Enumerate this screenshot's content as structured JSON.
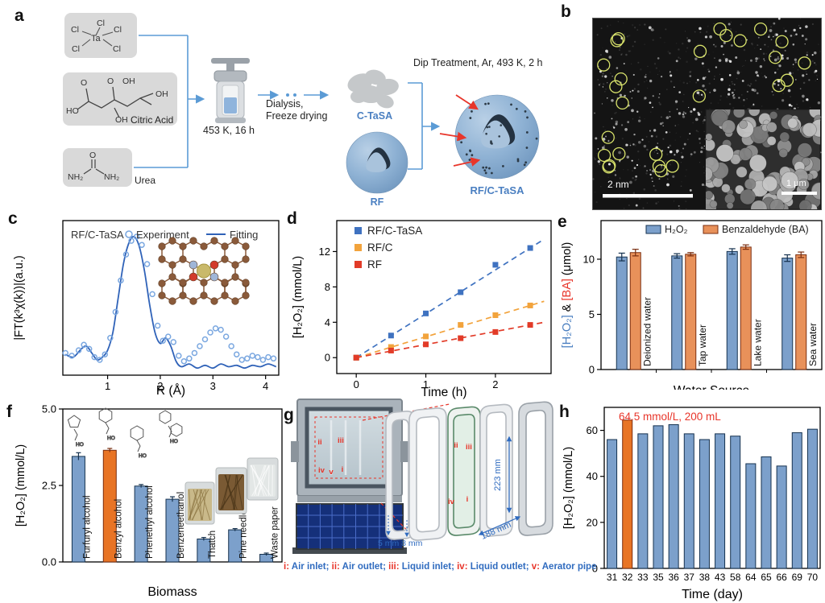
{
  "panels": {
    "a": {
      "label": "a",
      "tacl5": {
        "ta": "Ta",
        "cl": [
          "Cl",
          "Cl",
          "Cl",
          "Cl",
          "Cl"
        ]
      },
      "citric": {
        "atoms": [
          "O",
          "O",
          "OH",
          "HO",
          "OH",
          "OH"
        ],
        "caption": "Citric Acid"
      },
      "urea": {
        "atoms": [
          "O",
          "NH₂",
          "NH₂"
        ],
        "caption": "Urea"
      },
      "autoclave_caption": "453 K, 16 h",
      "step1_line1": "Dialysis,",
      "step1_line2": "Freeze drying",
      "intermediate1": "C-TaSA",
      "intermediate2": "RF",
      "step2_caption": "Dip Treatment, Ar, 493 K, 2 h",
      "product": "RF/C-TaSA",
      "accent_blue": "#5b9bd5",
      "label_blue": "#4a7fc1",
      "arrow_red": "#e8352a"
    },
    "b": {
      "label": "b",
      "scalebar_main": "2 nm",
      "scalebar_inset": "1 μm",
      "circle_color": "#d9e36b"
    },
    "c": {
      "label": "c",
      "sample": "RF/C-TaSA",
      "legend_experiment": "Experiment",
      "legend_fitting": "Fitting"
    },
    "d": {
      "label": "d"
    },
    "e": {
      "label": "e"
    },
    "f": {
      "label": "f"
    },
    "g": {
      "label": "g",
      "dim_height": "223 mm",
      "dim_width": "188 mm",
      "dim_gap": "5 mm 8 mm",
      "photo_markers_top": [
        "ii",
        "iii"
      ],
      "photo_markers_bottom": [
        "iv",
        "v",
        "i"
      ],
      "frame_markers_top": [
        "ii",
        "iii"
      ],
      "frame_markers_bottom": [
        "iv",
        "i"
      ],
      "legend": [
        {
          "n": "i",
          "t": "Air inlet"
        },
        {
          "n": "ii",
          "t": "Air outlet"
        },
        {
          "n": "iii",
          "t": "Liquid inlet"
        },
        {
          "n": "iv",
          "t": "Liquid outlet"
        },
        {
          "n": "v",
          "t": "Aerator pipe"
        }
      ]
    },
    "h": {
      "label": "h"
    }
  },
  "chart_data": [
    {
      "panel": "c",
      "type": "line",
      "title": "RF/C-TaSA",
      "xlabel": "R (Å)",
      "ylabel": "|FT(k³χ(k))|(a.u.)",
      "xlim": [
        0.15,
        4.25
      ],
      "xticks": [
        1,
        2,
        3,
        4
      ],
      "legend": [
        "Experiment",
        "Fitting"
      ],
      "legend_position": "top",
      "series": [
        {
          "name": "Experiment",
          "style": "circles",
          "color": "#7aa7e0",
          "x": [
            0.2,
            0.32,
            0.45,
            0.55,
            0.65,
            0.75,
            0.85,
            0.95,
            1.05,
            1.15,
            1.25,
            1.35,
            1.45,
            1.55,
            1.65,
            1.75,
            1.85,
            1.95,
            2.05,
            2.15,
            2.25,
            2.35,
            2.45,
            2.55,
            2.65,
            2.75,
            2.85,
            2.95,
            3.05,
            3.15,
            3.25,
            3.35,
            3.45,
            3.55,
            3.65,
            3.75,
            3.85,
            3.95,
            4.05,
            4.15
          ],
          "y": [
            0.15,
            0.13,
            0.17,
            0.21,
            0.18,
            0.12,
            0.1,
            0.14,
            0.26,
            0.45,
            0.68,
            0.87,
            0.97,
            1.0,
            0.94,
            0.8,
            0.58,
            0.35,
            0.24,
            0.27,
            0.23,
            0.13,
            0.09,
            0.11,
            0.15,
            0.2,
            0.25,
            0.3,
            0.33,
            0.32,
            0.27,
            0.2,
            0.14,
            0.1,
            0.11,
            0.13,
            0.12,
            0.1,
            0.12,
            0.11
          ]
        },
        {
          "name": "Fitting",
          "style": "line",
          "color": "#2f62b8",
          "x": [
            0.2,
            0.35,
            0.5,
            0.6,
            0.7,
            0.8,
            0.9,
            1.0,
            1.1,
            1.2,
            1.3,
            1.4,
            1.5,
            1.6,
            1.7,
            1.8,
            1.9,
            2.0,
            2.1,
            2.2,
            2.3,
            2.4,
            2.55,
            2.7,
            2.85,
            3.0,
            3.15,
            3.3,
            3.45,
            3.6,
            3.75,
            3.9,
            4.05,
            4.2
          ],
          "y": [
            0.14,
            0.12,
            0.18,
            0.2,
            0.15,
            0.1,
            0.12,
            0.17,
            0.3,
            0.55,
            0.8,
            0.95,
            1.0,
            0.93,
            0.75,
            0.5,
            0.3,
            0.22,
            0.26,
            0.2,
            0.09,
            0.05,
            0.07,
            0.04,
            0.06,
            0.04,
            0.07,
            0.05,
            0.06,
            0.04,
            0.06,
            0.05,
            0.07,
            0.05
          ]
        }
      ]
    },
    {
      "panel": "d",
      "type": "scatter",
      "xlabel": "Time (h)",
      "ylabel": "[H₂O₂] (mmol/L)",
      "xlim": [
        -0.28,
        2.8
      ],
      "ylim": [
        -1.8,
        15.5
      ],
      "xticks": [
        0,
        1,
        2
      ],
      "yticks": [
        0,
        4,
        8,
        12
      ],
      "x": [
        0,
        0.5,
        1,
        1.5,
        2,
        2.5
      ],
      "series": [
        {
          "name": "RF/C-TaSA",
          "color": "#3f72c0",
          "values": [
            0,
            2.5,
            5.0,
            7.4,
            10.5,
            12.4
          ]
        },
        {
          "name": "RF/C",
          "color": "#f2a33c",
          "values": [
            0,
            1.2,
            2.4,
            3.7,
            4.8,
            5.9
          ]
        },
        {
          "name": "RF",
          "color": "#e23b28",
          "values": [
            0,
            0.8,
            1.5,
            2.2,
            2.9,
            3.7
          ]
        }
      ]
    },
    {
      "panel": "e",
      "type": "grouped_bar",
      "xlabel": "Water Source",
      "ylabel_parts": [
        {
          "t": "[H₂O₂]",
          "c": "#4a7fc1"
        },
        {
          "t": " & ",
          "c": "#000000"
        },
        {
          "t": "[BA]",
          "c": "#e8352a"
        },
        {
          "t": " (μmol)",
          "c": "#000000"
        }
      ],
      "ylim": [
        0,
        13.5
      ],
      "yticks": [
        0,
        5,
        10
      ],
      "categories": [
        "Deionized water",
        "Tap water",
        "Lake water",
        "Sea water"
      ],
      "series": [
        {
          "name": "H₂O₂",
          "color": "#7ca0cb",
          "edge": "#16324f",
          "values": [
            10.2,
            10.3,
            10.7,
            10.1
          ],
          "errors": [
            0.35,
            0.2,
            0.25,
            0.3
          ]
        },
        {
          "name": "Benzaldehyde (BA)",
          "color": "#e8915a",
          "edge": "#7a2e10",
          "values": [
            10.6,
            10.45,
            11.1,
            10.4
          ],
          "errors": [
            0.3,
            0.15,
            0.2,
            0.25
          ]
        }
      ]
    },
    {
      "panel": "f",
      "type": "bar",
      "xlabel": "Biomass",
      "ylabel": "[H₂O₂] (mmol/L)",
      "ylim": [
        0,
        5
      ],
      "yticks": [
        0,
        2.5,
        5
      ],
      "ytick_labels": [
        "0.0",
        "2.5",
        "5.0"
      ],
      "categories": [
        "Furfuryl alcohol",
        "Benzyl alcohol",
        "Phenethyl alcohol",
        "Benzeneethanol",
        "Thatch",
        "Pine needle",
        "Waste paper"
      ],
      "values": [
        3.45,
        3.65,
        2.48,
        2.05,
        0.75,
        1.05,
        0.25
      ],
      "errors": [
        0.12,
        0.06,
        0.05,
        0.08,
        0.05,
        0.04,
        0.04
      ],
      "bar_color": "#7ca0cb",
      "edge": "#16324f",
      "highlight_index": 1,
      "highlight_color": "#e87425",
      "highlight_edge": "#7a2e10",
      "structure_labels": [
        "HO",
        "HO",
        "HO",
        "HO"
      ]
    },
    {
      "panel": "h",
      "type": "bar",
      "xlabel": "Time (day)",
      "ylabel": "[H₂O₂] (mmol/L)",
      "ylim": [
        0,
        70
      ],
      "yticks": [
        0,
        20,
        40,
        60
      ],
      "categories": [
        "31",
        "32",
        "33",
        "35",
        "36",
        "37",
        "38",
        "43",
        "58",
        "64",
        "65",
        "66",
        "69",
        "70"
      ],
      "values": [
        56,
        64.5,
        58.5,
        62,
        62.5,
        58.5,
        56,
        58.5,
        57.5,
        45.5,
        48.5,
        44.5,
        59,
        60.5
      ],
      "bar_color": "#7ca0cb",
      "edge": "#16324f",
      "highlight_index": 1,
      "highlight_color": "#e87425",
      "highlight_edge": "#7a2e10",
      "annotation": {
        "text": "64.5 mmol/L, 200 mL",
        "color": "#e8352a"
      }
    }
  ]
}
